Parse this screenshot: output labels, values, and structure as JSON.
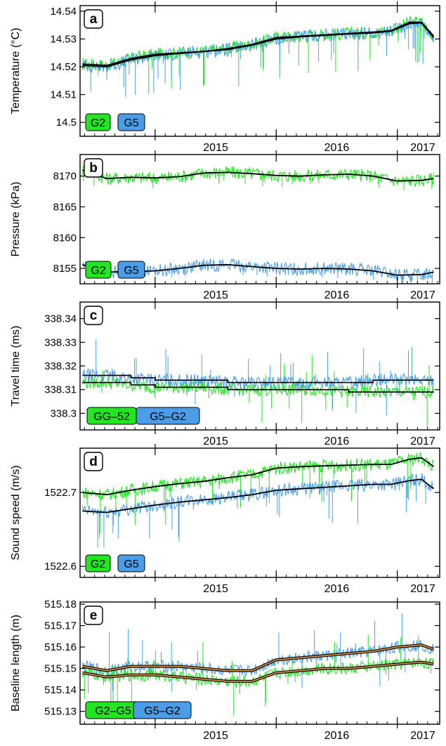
{
  "colors": {
    "green": "#22e622",
    "blue": "#4a9de6",
    "black": "#000000",
    "orange": "#e89a3c"
  },
  "x_axis": {
    "ticks": [
      "2015",
      "2016",
      "2017"
    ],
    "tick_dates": [
      2015.0,
      2016.0,
      2017.0
    ],
    "xlim": [
      2014.38,
      2017.35
    ]
  },
  "chart_data": [
    {
      "type": "line",
      "panel_label": "a",
      "ylabel": "Temperature (°C)",
      "ylim": [
        14.495,
        14.542
      ],
      "yticks": [
        "14.5",
        "14.51",
        "14.52",
        "14.53",
        "14.54"
      ],
      "legend": [
        "G2",
        "G5"
      ],
      "series": [
        {
          "name": "G2",
          "color": "green",
          "x": [
            2014.4,
            2014.6,
            2014.8,
            2015.0,
            2015.2,
            2015.4,
            2015.6,
            2015.8,
            2016.0,
            2016.2,
            2016.4,
            2016.6,
            2016.8,
            2016.95,
            2017.1,
            2017.2,
            2017.3
          ],
          "values": [
            14.521,
            14.5205,
            14.523,
            14.5245,
            14.525,
            14.5255,
            14.5265,
            14.528,
            14.5305,
            14.531,
            14.5315,
            14.532,
            14.5325,
            14.533,
            14.536,
            14.536,
            14.531
          ]
        },
        {
          "name": "G5",
          "color": "blue",
          "x": [
            2014.4,
            2014.6,
            2014.8,
            2015.0,
            2015.2,
            2015.4,
            2015.6,
            2015.8,
            2016.0,
            2016.2,
            2016.4,
            2016.6,
            2016.8,
            2016.95,
            2017.1,
            2017.2,
            2017.3
          ],
          "values": [
            14.5205,
            14.52,
            14.5225,
            14.524,
            14.5248,
            14.5255,
            14.5262,
            14.5278,
            14.53,
            14.5308,
            14.5313,
            14.5318,
            14.5322,
            14.5328,
            14.5355,
            14.5358,
            14.5305
          ]
        }
      ]
    },
    {
      "type": "line",
      "panel_label": "b",
      "ylabel": "Pressure (kPa)",
      "ylim": [
        8152.5,
        8173.5
      ],
      "yticks": [
        "8155",
        "8160",
        "8165",
        "8170"
      ],
      "legend": [
        "G2",
        "G5"
      ],
      "series": [
        {
          "name": "G2",
          "color": "green",
          "x": [
            2014.4,
            2014.6,
            2014.8,
            2015.0,
            2015.2,
            2015.4,
            2015.6,
            2015.8,
            2016.0,
            2016.2,
            2016.4,
            2016.6,
            2016.8,
            2017.0,
            2017.2,
            2017.3
          ],
          "values": [
            8171.0,
            8169.6,
            8169.8,
            8169.7,
            8169.9,
            8170.5,
            8170.6,
            8170.4,
            8170.1,
            8170.0,
            8170.2,
            8170.3,
            8170.0,
            8169.2,
            8169.3,
            8169.6
          ]
        },
        {
          "name": "G5",
          "color": "blue",
          "x": [
            2014.4,
            2014.6,
            2014.8,
            2015.0,
            2015.2,
            2015.4,
            2015.6,
            2015.8,
            2016.0,
            2016.2,
            2016.4,
            2016.6,
            2016.8,
            2017.0,
            2017.2,
            2017.3
          ],
          "values": [
            8155.6,
            8154.4,
            8154.5,
            8154.6,
            8155.0,
            8155.5,
            8155.6,
            8155.3,
            8155.0,
            8154.9,
            8155.0,
            8154.9,
            8154.6,
            8153.9,
            8154.0,
            8154.4
          ]
        }
      ]
    },
    {
      "type": "line",
      "panel_label": "c",
      "ylabel": "Travel time (ms)",
      "ylim": [
        338.293,
        338.347
      ],
      "yticks": [
        "338.3",
        "338.31",
        "338.32",
        "338.33",
        "338.34"
      ],
      "legend": [
        "GG–52",
        "G5–G2"
      ],
      "series": [
        {
          "name": "GG–52",
          "color": "green",
          "x": [
            2014.4,
            2014.6,
            2014.8,
            2015.0,
            2015.2,
            2015.4,
            2015.6,
            2015.8,
            2016.0,
            2016.2,
            2016.4,
            2016.6,
            2016.8,
            2017.0,
            2017.2,
            2017.3
          ],
          "values": [
            338.313,
            338.313,
            338.312,
            338.311,
            338.311,
            338.311,
            338.31,
            338.31,
            338.31,
            338.31,
            338.31,
            338.309,
            338.309,
            338.309,
            338.309,
            338.309
          ]
        },
        {
          "name": "G5–G2",
          "color": "blue",
          "x": [
            2014.4,
            2014.6,
            2014.8,
            2015.0,
            2015.2,
            2015.4,
            2015.6,
            2015.8,
            2016.0,
            2016.2,
            2016.4,
            2016.6,
            2016.8,
            2017.0,
            2017.2,
            2017.3
          ],
          "values": [
            338.316,
            338.316,
            338.315,
            338.314,
            338.314,
            338.314,
            338.313,
            338.313,
            338.313,
            338.313,
            338.313,
            338.313,
            338.314,
            338.314,
            338.314,
            338.314
          ]
        }
      ]
    },
    {
      "type": "line",
      "panel_label": "d",
      "ylabel": "Sound speed (m/s)",
      "ylim": [
        1522.585,
        1522.76
      ],
      "yticks": [
        "1522.6",
        "1522.7"
      ],
      "legend": [
        "G2",
        "G5"
      ],
      "series": [
        {
          "name": "G2",
          "color": "green",
          "x": [
            2014.4,
            2014.6,
            2014.8,
            2015.0,
            2015.2,
            2015.4,
            2015.6,
            2015.8,
            2016.0,
            2016.2,
            2016.4,
            2016.6,
            2016.8,
            2016.95,
            2017.1,
            2017.2,
            2017.3
          ],
          "values": [
            1522.7,
            1522.697,
            1522.703,
            1522.708,
            1522.712,
            1522.715,
            1522.72,
            1522.724,
            1522.733,
            1522.735,
            1522.736,
            1522.737,
            1522.738,
            1522.738,
            1522.745,
            1522.747,
            1522.735
          ]
        },
        {
          "name": "G5",
          "color": "blue",
          "x": [
            2014.4,
            2014.6,
            2014.8,
            2015.0,
            2015.2,
            2015.4,
            2015.6,
            2015.8,
            2016.0,
            2016.2,
            2016.4,
            2016.6,
            2016.8,
            2016.95,
            2017.1,
            2017.2,
            2017.3
          ],
          "values": [
            1522.675,
            1522.673,
            1522.678,
            1522.683,
            1522.687,
            1522.69,
            1522.693,
            1522.697,
            1522.703,
            1522.705,
            1522.707,
            1522.709,
            1522.711,
            1522.711,
            1522.716,
            1522.718,
            1522.705
          ]
        }
      ]
    },
    {
      "type": "line",
      "panel_label": "e",
      "ylabel": "Baseline length (m)",
      "ylim": [
        515.124,
        515.181
      ],
      "yticks": [
        "515.13",
        "515.14",
        "515.15",
        "515.16",
        "515.17",
        "515.18"
      ],
      "legend": [
        "G2–G5",
        "G5–G2"
      ],
      "series": [
        {
          "name": "G5–G2",
          "color": "blue",
          "x": [
            2014.4,
            2014.6,
            2014.8,
            2015.0,
            2015.2,
            2015.4,
            2015.6,
            2015.8,
            2016.0,
            2016.2,
            2016.4,
            2016.6,
            2016.8,
            2017.0,
            2017.2,
            2017.3
          ],
          "values": [
            515.151,
            515.149,
            515.151,
            515.151,
            515.151,
            515.15,
            515.149,
            515.149,
            515.154,
            515.155,
            515.156,
            515.157,
            515.158,
            515.16,
            515.161,
            515.159
          ]
        },
        {
          "name": "G2–G5",
          "color": "green",
          "x": [
            2014.4,
            2014.6,
            2014.8,
            2015.0,
            2015.2,
            2015.4,
            2015.6,
            2015.8,
            2016.0,
            2016.2,
            2016.4,
            2016.6,
            2016.8,
            2017.0,
            2017.2,
            2017.3
          ],
          "values": [
            515.148,
            515.146,
            515.147,
            515.147,
            515.146,
            515.145,
            515.144,
            515.144,
            515.148,
            515.149,
            515.15,
            515.15,
            515.151,
            515.152,
            515.153,
            515.152
          ]
        }
      ]
    }
  ]
}
